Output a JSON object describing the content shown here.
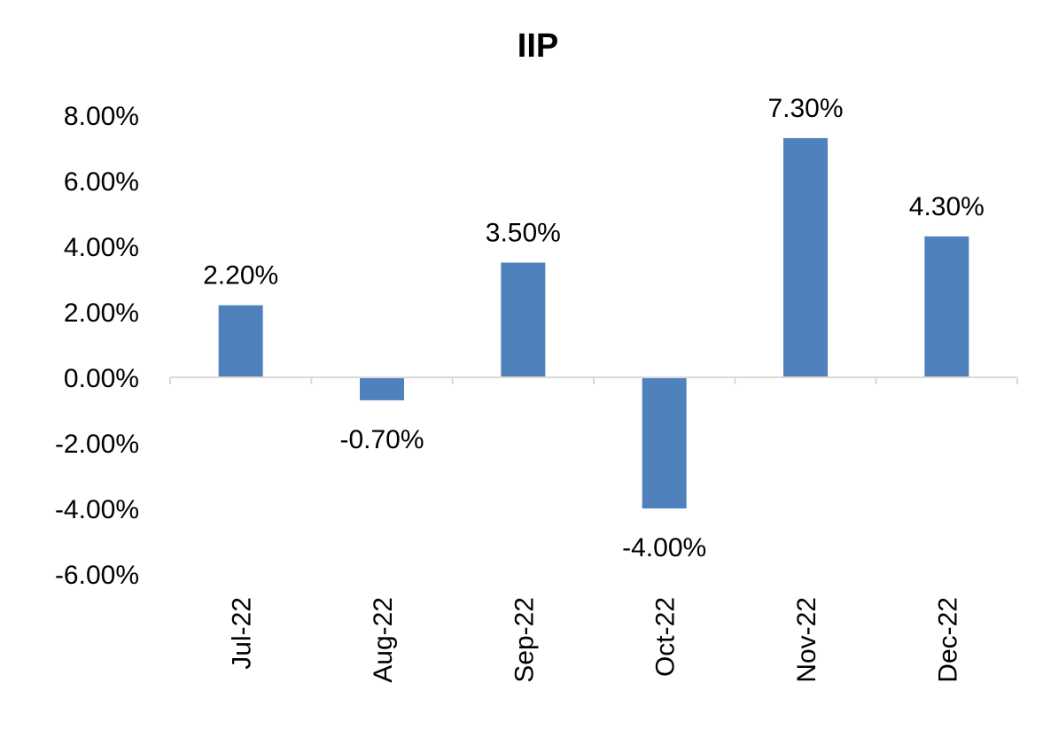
{
  "chart_data": {
    "type": "bar",
    "title": "IIP",
    "xlabel": "",
    "ylabel": "",
    "categories": [
      "Jul-22",
      "Aug-22",
      "Sep-22",
      "Oct-22",
      "Nov-22",
      "Dec-22"
    ],
    "values": [
      2.2,
      -0.7,
      3.5,
      -4.0,
      7.3,
      4.3
    ],
    "data_labels": [
      "2.20%",
      "-0.70%",
      "3.50%",
      "-4.00%",
      "7.30%",
      "4.30%"
    ],
    "ylim": [
      -6,
      8
    ],
    "yticks": [
      8,
      6,
      4,
      2,
      0,
      -2,
      -4,
      -6
    ],
    "ytick_labels": [
      "8.00%",
      "6.00%",
      "4.00%",
      "2.00%",
      "0.00%",
      "-2.00%",
      "-4.00%",
      "-6.00%"
    ],
    "grid": false,
    "legend": "none",
    "bar_color": "#4f81bd",
    "axis_color": "#d9d9d9"
  }
}
